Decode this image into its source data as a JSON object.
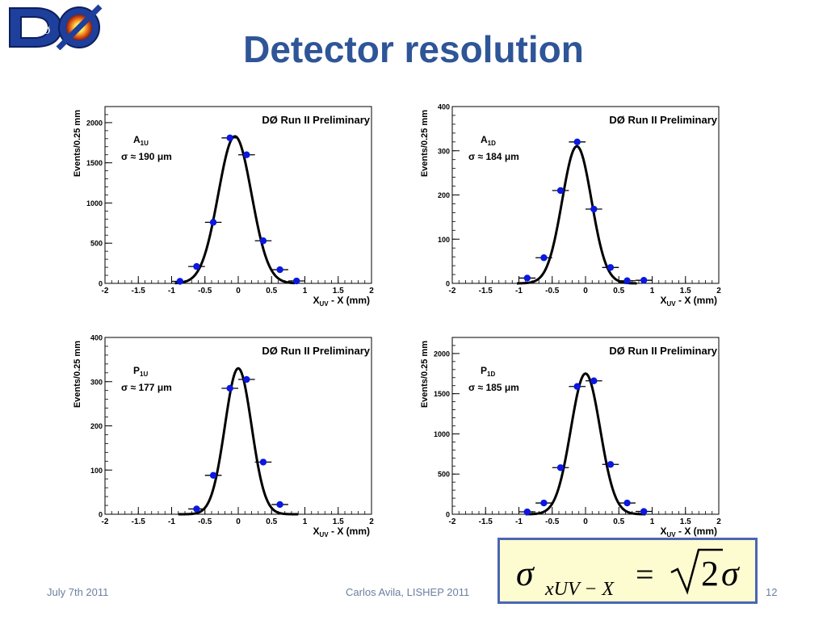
{
  "slide": {
    "title": "Detector resolution",
    "footer_left": "July 7th 2011",
    "footer_center": "Carlos Avila, LISHEP 2011",
    "page_number": "12",
    "logo_text": "DØ"
  },
  "colors": {
    "title": "#2e5597",
    "marker": "#0a18e0",
    "curve": "#000000",
    "formula_bg": "#fdfbd0",
    "formula_border": "#4a66b4"
  },
  "formula": {
    "lhs_symbol": "σ",
    "lhs_subscript": "xUV − X",
    "equals": "=",
    "rhs_coefficient": "2",
    "rhs_symbol": "σ"
  },
  "chart_data": [
    {
      "type": "scatter",
      "banner": "DØ Run II Preliminary",
      "label_main": "A",
      "label_sub": "1U",
      "sigma_label": "σ ≈ 190 μm",
      "xlabel_main": "X",
      "xlabel_sub": "UV",
      "xlabel_rest": " - X (mm)",
      "ylabel": "Events/0.25 mm",
      "xlim": [
        -2,
        2
      ],
      "ylim": [
        0,
        2200
      ],
      "xticks": [
        -2,
        -1.5,
        -1,
        -0.5,
        0,
        0.5,
        1,
        1.5,
        2
      ],
      "yticks": [
        0,
        500,
        1000,
        1500,
        2000
      ],
      "fit": {
        "amplitude": 1830,
        "mean": -0.05,
        "sigma": 0.25
      },
      "points": [
        {
          "x": -0.875,
          "y": 25
        },
        {
          "x": -0.625,
          "y": 210
        },
        {
          "x": -0.375,
          "y": 760
        },
        {
          "x": -0.125,
          "y": 1810
        },
        {
          "x": 0.125,
          "y": 1600
        },
        {
          "x": 0.375,
          "y": 530
        },
        {
          "x": 0.625,
          "y": 170
        },
        {
          "x": 0.875,
          "y": 30
        }
      ]
    },
    {
      "type": "scatter",
      "banner": "DØ Run II Preliminary",
      "label_main": "A",
      "label_sub": "1D",
      "sigma_label": "σ ≈ 184 μm",
      "xlabel_main": "X",
      "xlabel_sub": "UV",
      "xlabel_rest": " - X (mm)",
      "ylabel": "Events/0.25 mm",
      "xlim": [
        -2,
        2
      ],
      "ylim": [
        0,
        400
      ],
      "xticks": [
        -2,
        -1.5,
        -1,
        -0.5,
        0,
        0.5,
        1,
        1.5,
        2
      ],
      "yticks": [
        0,
        100,
        200,
        300,
        400
      ],
      "fit": {
        "amplitude": 310,
        "mean": -0.13,
        "sigma": 0.22
      },
      "points": [
        {
          "x": -0.875,
          "y": 12
        },
        {
          "x": -0.625,
          "y": 58
        },
        {
          "x": -0.375,
          "y": 210
        },
        {
          "x": -0.125,
          "y": 320
        },
        {
          "x": 0.125,
          "y": 168
        },
        {
          "x": 0.375,
          "y": 36
        },
        {
          "x": 0.625,
          "y": 6
        },
        {
          "x": 0.875,
          "y": 7
        }
      ]
    },
    {
      "type": "scatter",
      "banner": "DØ Run II Preliminary",
      "label_main": "P",
      "label_sub": "1U",
      "sigma_label": "σ ≈ 177 μm",
      "xlabel_main": "X",
      "xlabel_sub": "UV",
      "xlabel_rest": " - X (mm)",
      "ylabel": "Events/0.25 mm",
      "xlim": [
        -2,
        2
      ],
      "ylim": [
        0,
        400
      ],
      "xticks": [
        -2,
        -1.5,
        -1,
        -0.5,
        0,
        0.5,
        1,
        1.5,
        2
      ],
      "yticks": [
        0,
        100,
        200,
        300,
        400
      ],
      "fit": {
        "amplitude": 330,
        "mean": 0.0,
        "sigma": 0.2
      },
      "points": [
        {
          "x": -0.625,
          "y": 12
        },
        {
          "x": -0.375,
          "y": 88
        },
        {
          "x": -0.125,
          "y": 285
        },
        {
          "x": 0.125,
          "y": 305
        },
        {
          "x": 0.375,
          "y": 118
        },
        {
          "x": 0.625,
          "y": 22
        }
      ]
    },
    {
      "type": "scatter",
      "banner": "DØ Run II Preliminary",
      "label_main": "P",
      "label_sub": "1D",
      "sigma_label": "σ ≈ 185 μm",
      "xlabel_main": "X",
      "xlabel_sub": "UV",
      "xlabel_rest": " - X (mm)",
      "ylabel": "Events/0.25 mm",
      "xlim": [
        -2,
        2
      ],
      "ylim": [
        0,
        2200
      ],
      "xticks": [
        -2,
        -1.5,
        -1,
        -0.5,
        0,
        0.5,
        1,
        1.5,
        2
      ],
      "yticks": [
        0,
        500,
        1000,
        1500,
        2000
      ],
      "fit": {
        "amplitude": 1750,
        "mean": 0.0,
        "sigma": 0.22
      },
      "points": [
        {
          "x": -0.875,
          "y": 30
        },
        {
          "x": -0.625,
          "y": 140
        },
        {
          "x": -0.375,
          "y": 580
        },
        {
          "x": -0.125,
          "y": 1590
        },
        {
          "x": 0.125,
          "y": 1660
        },
        {
          "x": 0.375,
          "y": 620
        },
        {
          "x": 0.625,
          "y": 140
        },
        {
          "x": 0.875,
          "y": 35
        }
      ]
    }
  ]
}
